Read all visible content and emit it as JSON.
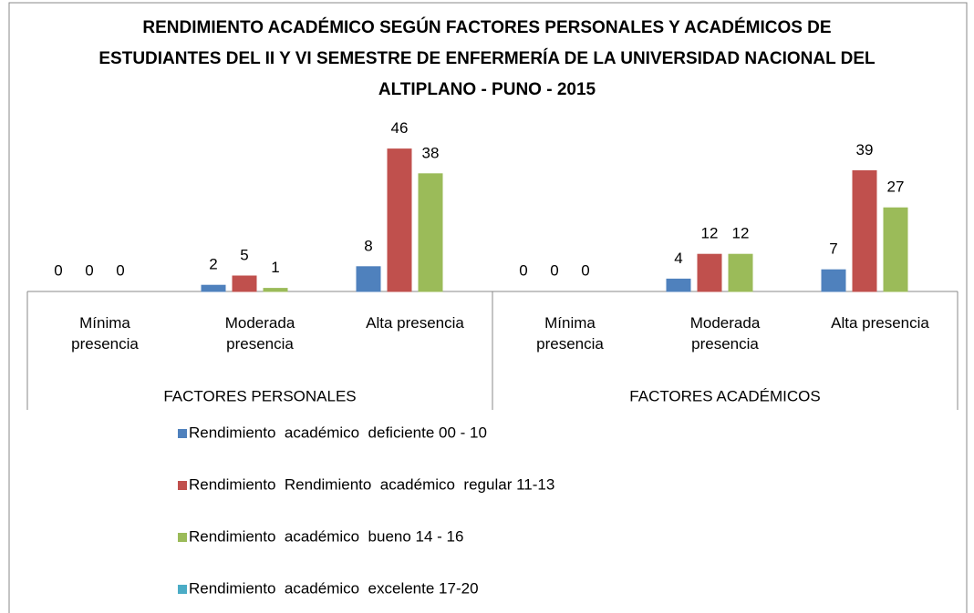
{
  "chart_data": {
    "type": "bar",
    "title": "RENDIMIENTO ACADÉMICO SEGÚN FACTORES PERSONALES Y ACADÉMICOS DE ESTUDIANTES DEL II Y VI SEMESTRE DE ENFERMERÍA DE LA UNIVERSIDAD NACIONAL DEL ALTIPLANO - PUNO - 2015",
    "categories": [
      "Mínima presencia",
      "Moderada presencia",
      "Alta presencia",
      "Mínima presencia",
      "Moderada presencia",
      "Alta presencia"
    ],
    "category_groups": [
      "FACTORES PERSONALES",
      "FACTORES ACADÉMICOS"
    ],
    "series": [
      {
        "name": "Rendimiento  académico  deficiente 00 - 10",
        "color": "#4f81bd",
        "values": [
          0,
          2,
          8,
          0,
          4,
          7
        ]
      },
      {
        "name": "Rendimiento  Rendimiento  académico  regular 11-13",
        "color": "#c0504d",
        "values": [
          0,
          5,
          46,
          0,
          12,
          39
        ]
      },
      {
        "name": "Rendimiento  académico  bueno 14 - 16",
        "color": "#9bbb59",
        "values": [
          0,
          1,
          38,
          0,
          12,
          27
        ]
      },
      {
        "name": "Rendimiento  académico  excelente 17-20",
        "color": "#4bacc6",
        "values": [
          null,
          null,
          null,
          null,
          null,
          null
        ]
      }
    ],
    "ylim": [
      0,
      50
    ]
  }
}
